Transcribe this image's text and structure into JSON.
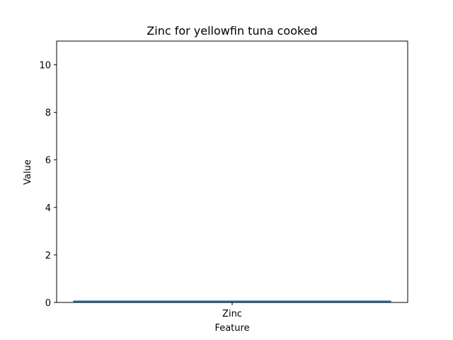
{
  "chart_data": {
    "type": "bar",
    "title": "Zinc for yellowfin tuna cooked",
    "xlabel": "Feature",
    "ylabel": "Value",
    "categories": [
      "Zinc"
    ],
    "values": [
      0.08
    ],
    "ylim": [
      0,
      11
    ],
    "yticks": [
      0,
      2,
      4,
      6,
      8,
      10
    ],
    "grid": false,
    "legend": "none",
    "bar_color": "#1f77b4"
  }
}
